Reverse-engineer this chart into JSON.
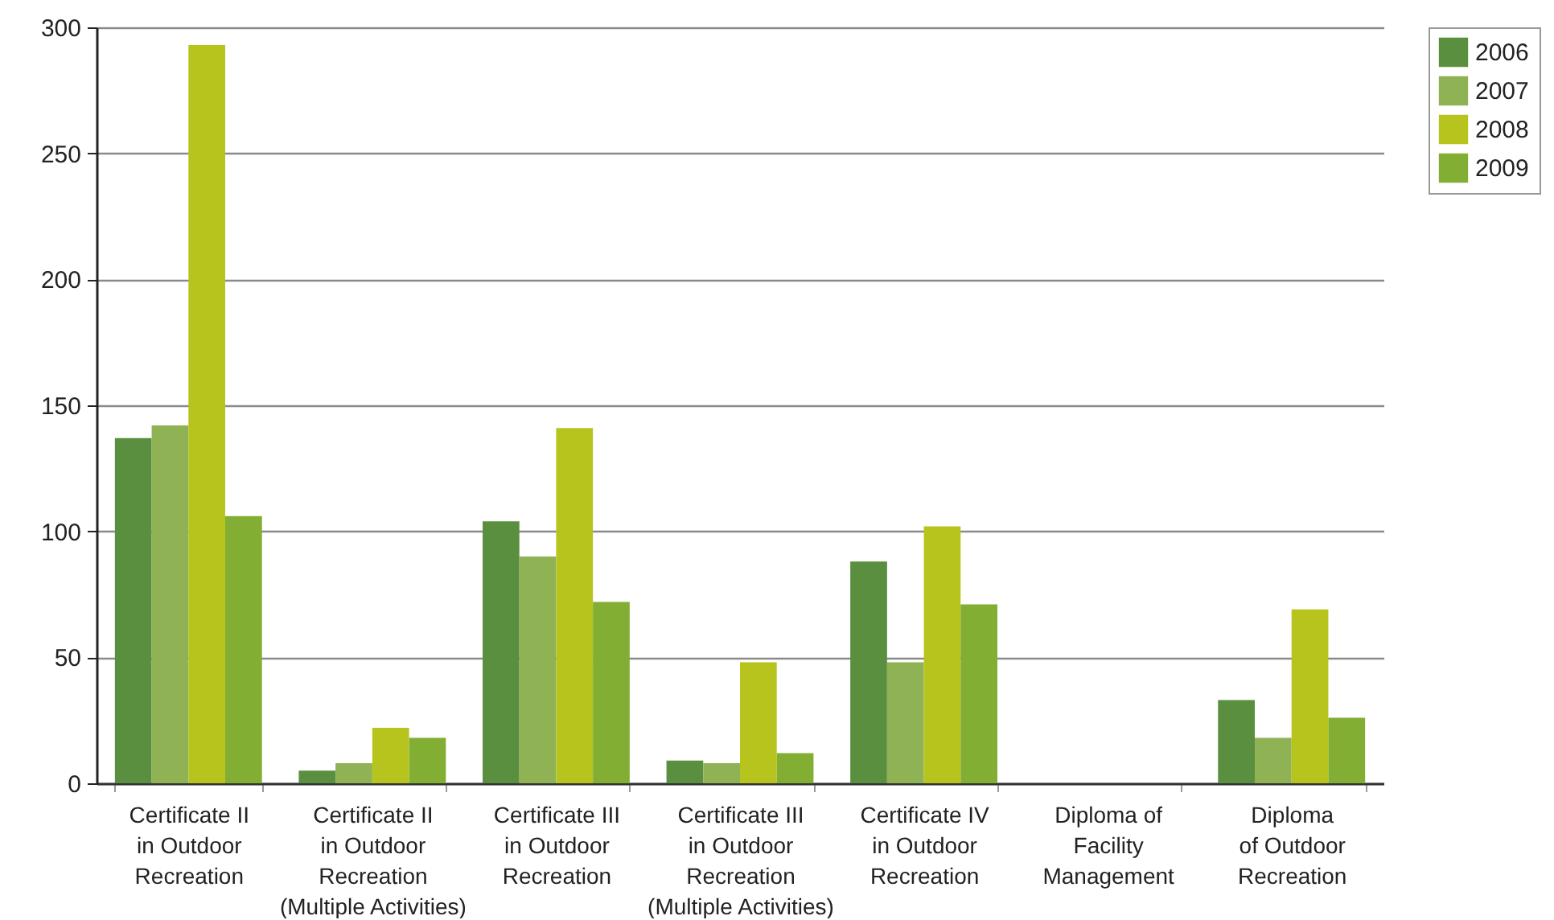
{
  "chart_data": {
    "type": "bar",
    "categories": [
      "Certificate II\nin Outdoor\nRecreation",
      "Certificate II\nin Outdoor\nRecreation\n(Multiple Activities)",
      "Certificate III\nin Outdoor\nRecreation",
      "Certificate III\nin Outdoor\nRecreation\n(Multiple Activities)",
      "Certificate IV\nin Outdoor\nRecreation",
      "Diploma of\nFacility\nManagement",
      "Diploma\nof Outdoor\nRecreation"
    ],
    "series": [
      {
        "name": "2006",
        "color": "#5a8f3f",
        "values": [
          137,
          5,
          104,
          9,
          88,
          0,
          33
        ]
      },
      {
        "name": "2007",
        "color": "#8fb254",
        "values": [
          142,
          8,
          90,
          8,
          48,
          0,
          18
        ]
      },
      {
        "name": "2008",
        "color": "#b8c41e",
        "values": [
          293,
          22,
          141,
          48,
          102,
          0,
          69
        ]
      },
      {
        "name": "2009",
        "color": "#82ae34",
        "values": [
          106,
          18,
          72,
          12,
          71,
          0,
          26
        ]
      }
    ],
    "ylim": [
      0,
      300
    ],
    "yticks": [
      0,
      50,
      100,
      150,
      200,
      250,
      300
    ],
    "grid": "y",
    "legend": "top right"
  }
}
